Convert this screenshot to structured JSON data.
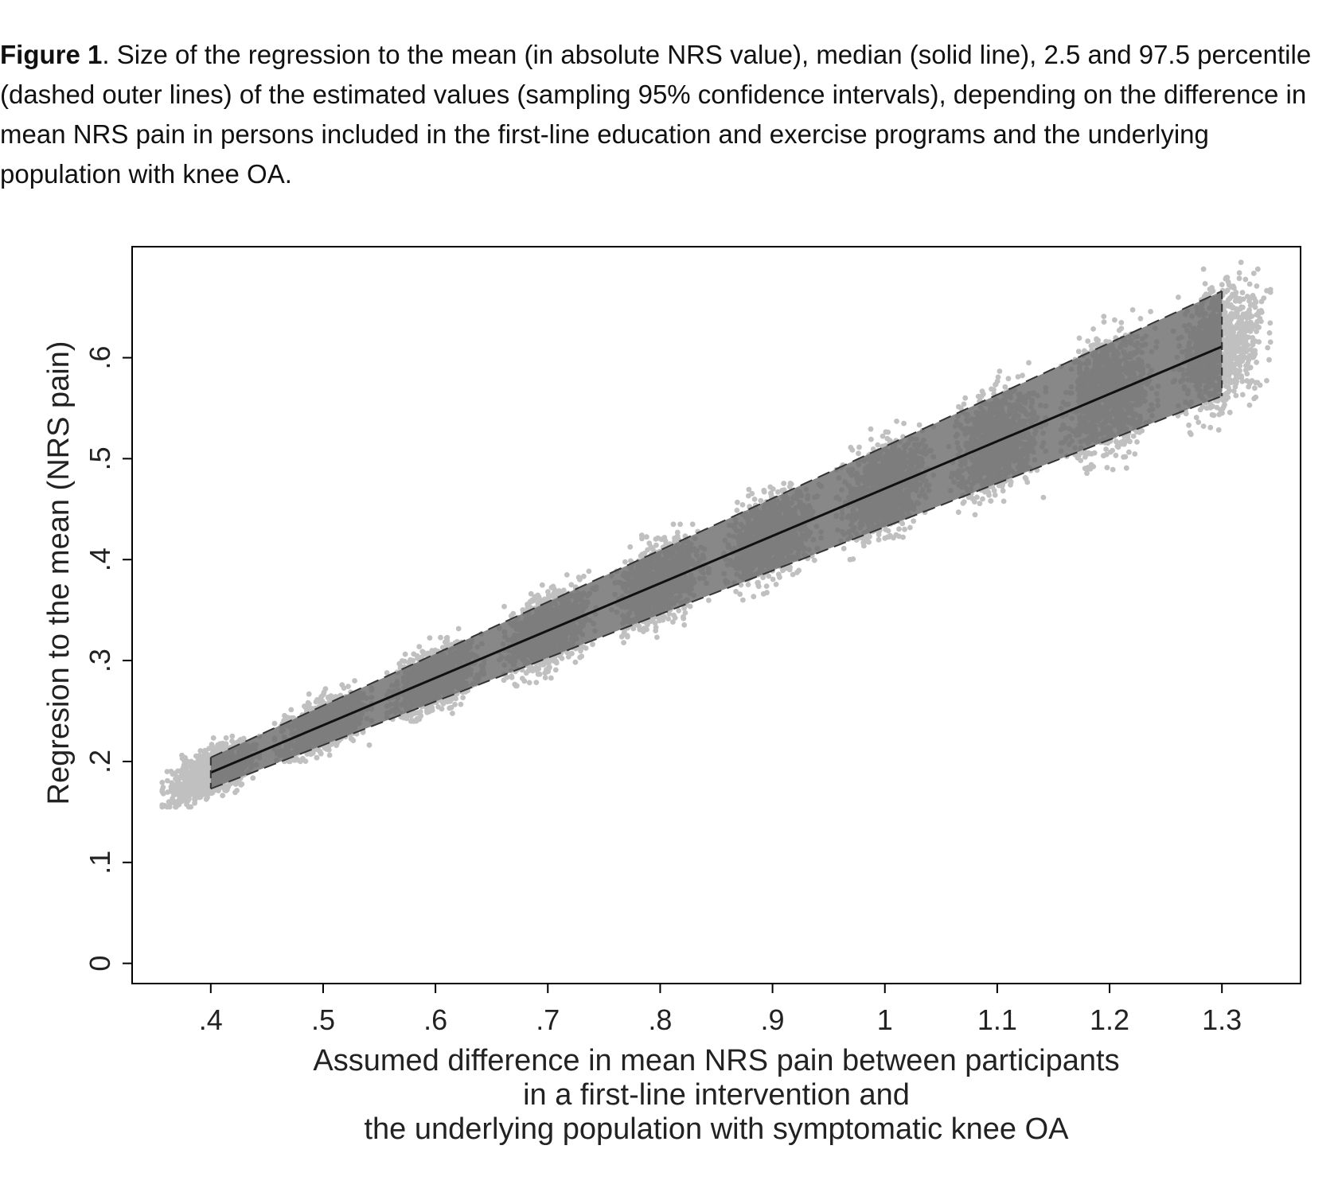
{
  "caption": {
    "label": "Figure 1",
    "text": ". Size of the regression to the mean (in absolute NRS value), median (solid line), 2.5 and 97.5 percentile (dashed outer lines) of the estimated values (sampling 95% confidence intervals), depending on the difference in mean NRS pain in persons included in the first-line education and exercise programs and the underlying population with knee OA."
  },
  "colors": {
    "scatter": "#c0c0c0",
    "band": "#6e6e6e",
    "median": "#111111",
    "dashed": "#333333",
    "frame": "#000000"
  },
  "chart_data": {
    "type": "scatter",
    "title": "",
    "xlabel_lines": [
      "Assumed difference in mean NRS pain between participants",
      "in a first-line intervention and",
      "the underlying population with symptomatic knee OA"
    ],
    "ylabel": "Regresion to the mean (NRS pain)",
    "xlim": [
      0.33,
      1.37
    ],
    "ylim": [
      -0.02,
      0.71
    ],
    "x_ticks": [
      0.4,
      0.5,
      0.6,
      0.7,
      0.8,
      0.9,
      1.0,
      1.1,
      1.2,
      1.3
    ],
    "x_tick_labels": [
      ".4",
      ".5",
      ".6",
      ".7",
      ".8",
      ".9",
      "1",
      "1.1",
      "1.2",
      "1.3"
    ],
    "y_ticks": [
      0,
      0.1,
      0.2,
      0.3,
      0.4,
      0.5,
      0.6
    ],
    "y_tick_labels": [
      "0",
      ".1",
      ".2",
      ".3",
      ".4",
      ".5",
      ".6"
    ],
    "series": [
      {
        "name": "median",
        "style": "solid",
        "x": [
          0.4,
          1.3
        ],
        "y": [
          0.189,
          0.611
        ]
      },
      {
        "name": "97.5 percentile",
        "style": "dashed",
        "x": [
          0.4,
          1.3
        ],
        "y": [
          0.204,
          0.666
        ]
      },
      {
        "name": "2.5 percentile",
        "style": "dashed",
        "x": [
          0.4,
          1.3
        ],
        "y": [
          0.173,
          0.562
        ]
      }
    ],
    "scatter_clusters": [
      {
        "x": 0.4,
        "center": 0.189,
        "low": 0.155,
        "high": 0.225
      },
      {
        "x": 0.5,
        "center": 0.236,
        "low": 0.2,
        "high": 0.28
      },
      {
        "x": 0.6,
        "center": 0.283,
        "low": 0.24,
        "high": 0.335
      },
      {
        "x": 0.7,
        "center": 0.33,
        "low": 0.275,
        "high": 0.39
      },
      {
        "x": 0.8,
        "center": 0.377,
        "low": 0.315,
        "high": 0.435
      },
      {
        "x": 0.9,
        "center": 0.424,
        "low": 0.36,
        "high": 0.485
      },
      {
        "x": 1.0,
        "center": 0.471,
        "low": 0.4,
        "high": 0.54
      },
      {
        "x": 1.1,
        "center": 0.518,
        "low": 0.44,
        "high": 0.595
      },
      {
        "x": 1.2,
        "center": 0.564,
        "low": 0.47,
        "high": 0.65
      },
      {
        "x": 1.3,
        "center": 0.611,
        "low": 0.51,
        "high": 0.695
      }
    ],
    "points_per_cluster": 900,
    "grid": false,
    "legend": "none"
  }
}
